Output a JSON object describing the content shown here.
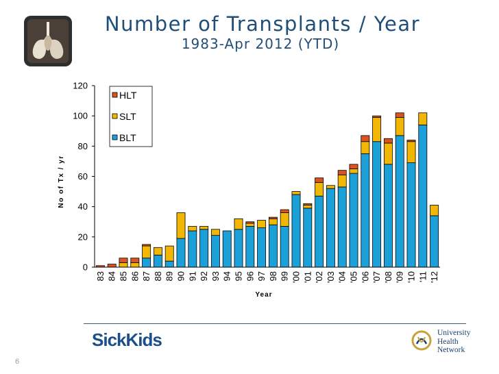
{
  "slide": {
    "title": "Number of Transplants / Year",
    "subtitle": "1983-Apr 2012 (YTD)",
    "page_number": "6"
  },
  "logos": {
    "sickkids": "SickKids",
    "uhn": [
      "University",
      "Health",
      "Network"
    ]
  },
  "colors": {
    "blt": "#1ba1d8",
    "slt": "#f2b705",
    "hlt": "#d9541e"
  },
  "chart_data": {
    "type": "bar",
    "stacked": true,
    "title": "Number of Transplants / Year",
    "subtitle": "1983-Apr 2012 (YTD)",
    "xlabel": "Year",
    "ylabel": "No of Tx / yr",
    "ylim": [
      0,
      120
    ],
    "yticks": [
      0,
      20,
      40,
      60,
      80,
      100,
      120
    ],
    "legend_position": "top-left",
    "legend_order": [
      "HLT",
      "SLT",
      "BLT"
    ],
    "categories": [
      "83",
      "84",
      "85",
      "86",
      "87",
      "88",
      "89",
      "90",
      "91",
      "92",
      "93",
      "94",
      "95",
      "96",
      "97",
      "98",
      "99",
      "'00",
      "'01",
      "'02",
      "'03",
      "'04",
      "'05",
      "'06",
      "'07",
      "'08",
      "'09",
      "'10",
      "'11",
      "'12"
    ],
    "series": [
      {
        "name": "BLT",
        "color": "#1ba1d8",
        "values": [
          0,
          0,
          0,
          0,
          6,
          8,
          4,
          19,
          24,
          25,
          21,
          24,
          25,
          27,
          26,
          28,
          27,
          48,
          39,
          47,
          52,
          53,
          62,
          75,
          83,
          68,
          87,
          69,
          94,
          34
        ]
      },
      {
        "name": "SLT",
        "color": "#f2b705",
        "values": [
          0,
          0,
          3,
          3,
          8,
          5,
          10,
          17,
          3,
          2,
          4,
          0,
          7,
          2,
          5,
          4,
          9,
          2,
          2,
          9,
          2,
          8,
          3,
          8,
          16,
          14,
          12,
          14,
          8,
          7
        ]
      },
      {
        "name": "HLT",
        "color": "#d9541e",
        "values": [
          1,
          2,
          3,
          3,
          1,
          0,
          0,
          0,
          0,
          0,
          0,
          0,
          0,
          1,
          0,
          1,
          2,
          0,
          1,
          3,
          0,
          3,
          3,
          4,
          1,
          3,
          3,
          1,
          0,
          0
        ]
      }
    ]
  }
}
